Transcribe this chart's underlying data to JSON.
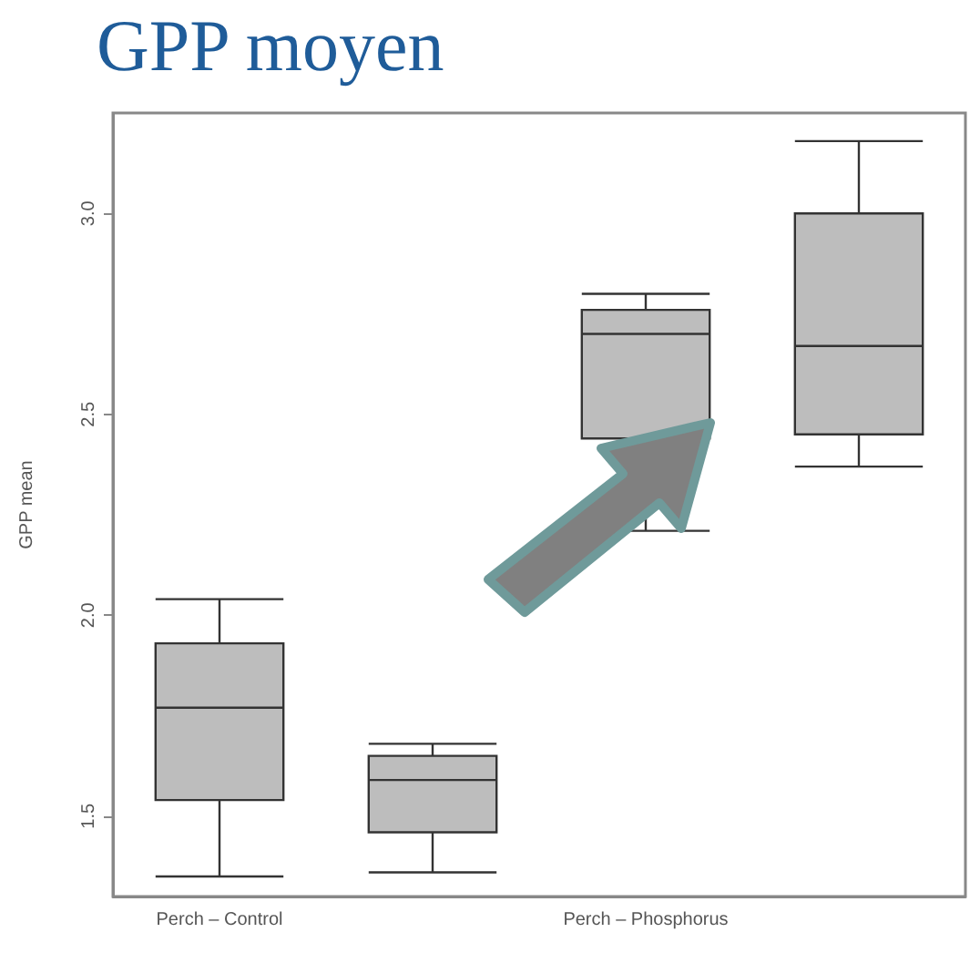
{
  "chart_data": {
    "type": "box",
    "title": "GPP moyen",
    "ylabel": "GPP mean",
    "categories": [
      "Perch – Control",
      null,
      "Perch – Phosphorus",
      null
    ],
    "boxes": [
      {
        "low": 1.35,
        "q1": 1.54,
        "median": 1.77,
        "q3": 1.93,
        "high": 2.04
      },
      {
        "low": 1.36,
        "q1": 1.46,
        "median": 1.59,
        "q3": 1.65,
        "high": 1.68
      },
      {
        "low": 2.21,
        "q1": 2.44,
        "median": 2.7,
        "q3": 2.76,
        "high": 2.8
      },
      {
        "low": 2.37,
        "q1": 2.45,
        "median": 2.67,
        "q3": 3.0,
        "high": 3.18
      }
    ],
    "color": "#bdbdbd",
    "ylim": [
      1.3,
      3.25
    ],
    "yticks": [
      1.5,
      {
        "value": 2,
        "label": "2.0"
      },
      2.5,
      {
        "value": 3,
        "label": "3.0"
      }
    ],
    "grid": false
  }
}
